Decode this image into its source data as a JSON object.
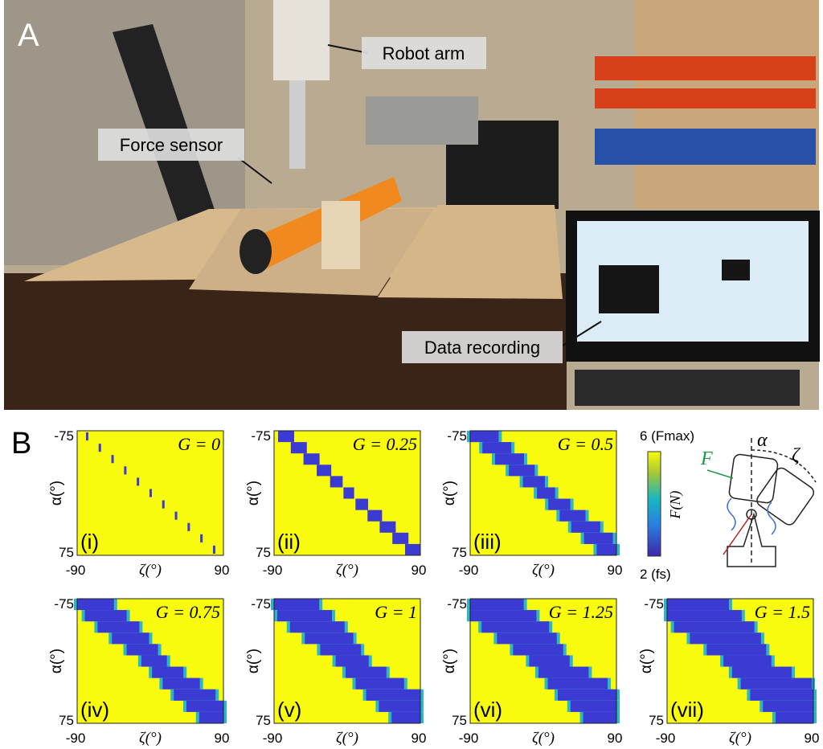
{
  "panel_a": {
    "label": "A",
    "annotations": [
      "Robot arm",
      "Force sensor",
      "Data recording"
    ]
  },
  "panel_b": {
    "label": "B",
    "x_axis_label": "ζ(°)",
    "y_axis_label": "α(°)",
    "x_ticks": [
      "-90",
      "90"
    ],
    "y_ticks": [
      "-75",
      "75"
    ],
    "plots": [
      {
        "label": "(i)",
        "title": "G = 0"
      },
      {
        "label": "(ii)",
        "title": "G = 0.25"
      },
      {
        "label": "(iii)",
        "title": "G = 0.5"
      },
      {
        "label": "(iv)",
        "title": "G = 0.75"
      },
      {
        "label": "(v)",
        "title": "G = 1"
      },
      {
        "label": "(vi)",
        "title": "G = 1.25"
      },
      {
        "label": "(vii)",
        "title": "G = 1.5"
      }
    ],
    "colorbar": {
      "label": "F(N)",
      "top_label": "6 (Fmax)",
      "bottom_label": "2 (fs)"
    },
    "diagram": {
      "labels": [
        "α",
        "F",
        "ζ"
      ]
    }
  }
}
